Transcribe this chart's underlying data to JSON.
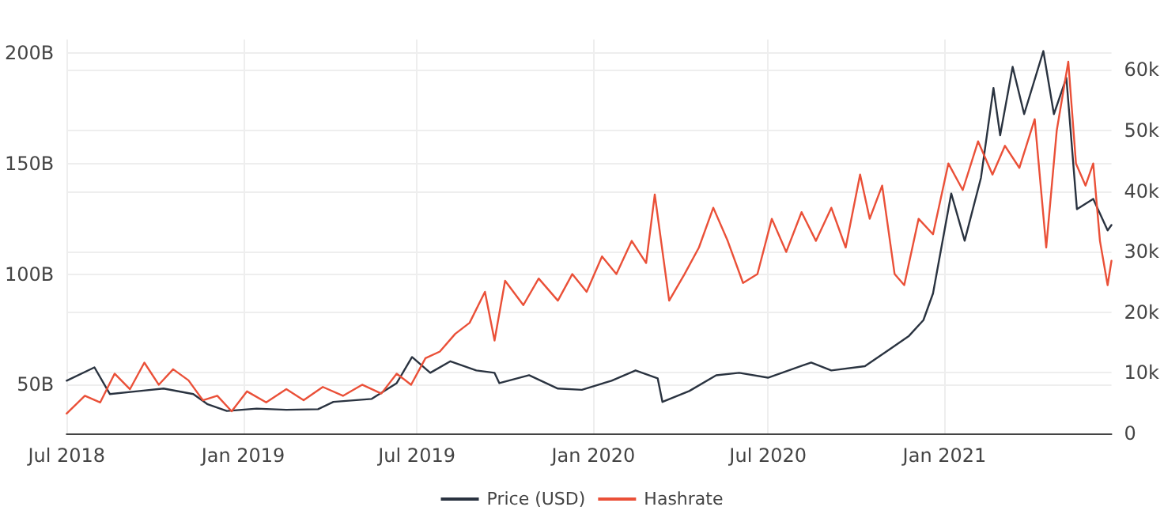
{
  "chart_data": {
    "type": "line",
    "xlim": [
      "2018-07-01",
      "2021-06-24"
    ],
    "xticks": [
      {
        "value": "2018-07-01",
        "label": "Jul 2018"
      },
      {
        "value": "2019-01-01",
        "label": "Jan 2019"
      },
      {
        "value": "2019-07-01",
        "label": "Jul 2019"
      },
      {
        "value": "2020-01-01",
        "label": "Jan 2020"
      },
      {
        "value": "2020-07-01",
        "label": "Jul 2020"
      },
      {
        "value": "2021-01-01",
        "label": "Jan 2021"
      }
    ],
    "ylim": [
      28,
      206
    ],
    "yticks": [
      {
        "value": 50,
        "label": "50B"
      },
      {
        "value": 100,
        "label": "100B"
      },
      {
        "value": 150,
        "label": "150B"
      },
      {
        "value": 200,
        "label": "200B"
      }
    ],
    "y2lim": [
      0,
      65000
    ],
    "y2ticks": [
      0,
      {
        "value": 10000,
        "label": "10k"
      },
      {
        "value": 20000,
        "label": "20k"
      },
      {
        "value": 30000,
        "label": "30k"
      },
      {
        "value": 40000,
        "label": "40k"
      },
      {
        "value": 50000,
        "label": "50k"
      },
      {
        "value": 60000,
        "label": "60k"
      }
    ],
    "grid": true,
    "legend": "bottom",
    "marker": "none",
    "line_style": "solid",
    "series": [
      {
        "name": "Price (USD)",
        "color": "#2a3340",
        "axis": "y2",
        "x": [
          "2018-07-01",
          "2018-07-30",
          "2018-08-15",
          "2018-09-15",
          "2018-10-10",
          "2018-11-10",
          "2018-11-25",
          "2018-12-15",
          "2019-01-15",
          "2019-02-15",
          "2019-03-20",
          "2019-04-05",
          "2019-05-15",
          "2019-06-10",
          "2019-06-26",
          "2019-07-15",
          "2019-08-05",
          "2019-09-01",
          "2019-09-20",
          "2019-09-25",
          "2019-10-26",
          "2019-11-25",
          "2019-12-20",
          "2020-01-20",
          "2020-02-14",
          "2020-03-08",
          "2020-03-13",
          "2020-04-10",
          "2020-05-08",
          "2020-06-01",
          "2020-07-01",
          "2020-08-15",
          "2020-09-05",
          "2020-10-10",
          "2020-11-05",
          "2020-11-25",
          "2020-12-10",
          "2020-12-20",
          "2021-01-08",
          "2021-01-22",
          "2021-02-08",
          "2021-02-21",
          "2021-02-28",
          "2021-03-13",
          "2021-03-25",
          "2021-04-14",
          "2021-04-25",
          "2021-05-08",
          "2021-05-19",
          "2021-06-05",
          "2021-06-20",
          "2021-06-24"
        ],
        "values": [
          8700,
          10900,
          6500,
          7000,
          7400,
          6500,
          4800,
          3700,
          4100,
          3900,
          4000,
          5200,
          5700,
          8300,
          12600,
          10000,
          11900,
          10400,
          10000,
          8300,
          9600,
          7400,
          7200,
          8700,
          10400,
          9100,
          5200,
          7000,
          9600,
          10000,
          9200,
          11700,
          10400,
          11100,
          13900,
          16100,
          18700,
          23100,
          39600,
          31800,
          42200,
          57000,
          49200,
          60500,
          52700,
          63100,
          52700,
          58700,
          37000,
          38700,
          33500,
          34400
        ]
      },
      {
        "name": "Hashrate",
        "color": "#ea5038",
        "x": [
          "2018-07-01",
          "2018-07-20",
          "2018-08-05",
          "2018-08-20",
          "2018-09-05",
          "2018-09-20",
          "2018-10-05",
          "2018-10-20",
          "2018-11-05",
          "2018-11-20",
          "2018-12-05",
          "2018-12-20",
          "2019-01-05",
          "2019-01-25",
          "2019-02-15",
          "2019-03-05",
          "2019-03-25",
          "2019-04-15",
          "2019-05-05",
          "2019-05-25",
          "2019-06-10",
          "2019-06-25",
          "2019-07-10",
          "2019-07-25",
          "2019-08-10",
          "2019-08-25",
          "2019-09-10",
          "2019-09-20",
          "2019-10-01",
          "2019-10-20",
          "2019-11-05",
          "2019-11-25",
          "2019-12-10",
          "2019-12-25",
          "2020-01-10",
          "2020-01-25",
          "2020-02-10",
          "2020-02-25",
          "2020-03-05",
          "2020-03-20",
          "2020-04-05",
          "2020-04-20",
          "2020-05-05",
          "2020-05-20",
          "2020-06-05",
          "2020-06-20",
          "2020-07-05",
          "2020-07-20",
          "2020-08-05",
          "2020-08-20",
          "2020-09-05",
          "2020-09-20",
          "2020-10-05",
          "2020-10-15",
          "2020-10-28",
          "2020-11-10",
          "2020-11-20",
          "2020-12-05",
          "2020-12-20",
          "2021-01-05",
          "2021-01-20",
          "2021-02-05",
          "2021-02-20",
          "2021-03-05",
          "2021-03-20",
          "2021-04-05",
          "2021-04-17",
          "2021-04-28",
          "2021-05-10",
          "2021-05-18",
          "2021-05-28",
          "2021-06-05",
          "2021-06-12",
          "2021-06-20",
          "2021-06-24"
        ],
        "values": [
          37,
          45,
          42,
          55,
          48,
          60,
          50,
          57,
          52,
          43,
          45,
          38,
          47,
          42,
          48,
          43,
          49,
          45,
          50,
          46,
          55,
          50,
          62,
          65,
          73,
          78,
          92,
          70,
          97,
          86,
          98,
          88,
          100,
          92,
          108,
          100,
          115,
          105,
          136,
          88,
          100,
          112,
          130,
          115,
          96,
          100,
          125,
          110,
          128,
          115,
          130,
          112,
          145,
          125,
          140,
          100,
          95,
          125,
          118,
          150,
          138,
          160,
          145,
          158,
          148,
          170,
          112,
          165,
          196,
          150,
          140,
          150,
          115,
          95,
          106
        ]
      }
    ]
  }
}
